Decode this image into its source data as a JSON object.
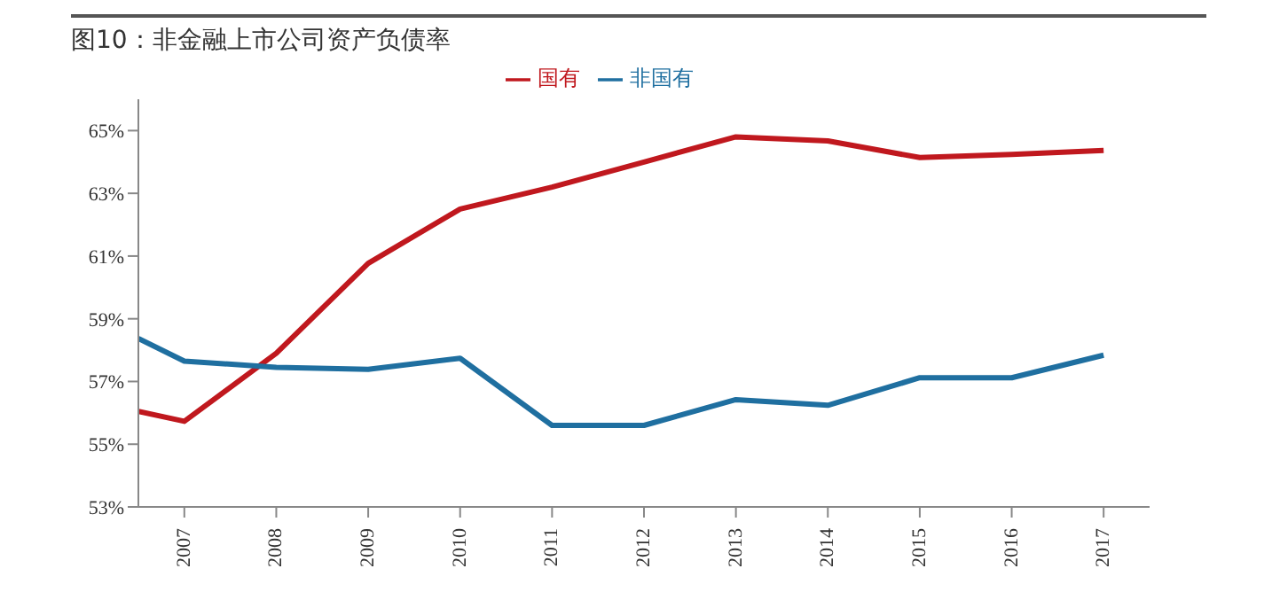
{
  "chart_data": {
    "type": "line",
    "title": "图10：非金融上市公司资产负债率",
    "x": [
      2006.5,
      2007,
      2008,
      2009,
      2010,
      2011,
      2012,
      2013,
      2014,
      2015,
      2016,
      2017
    ],
    "xlim": [
      2006.5,
      2017.5
    ],
    "xticks": [
      2007,
      2008,
      2009,
      2010,
      2011,
      2012,
      2013,
      2014,
      2015,
      2016,
      2017
    ],
    "ylim": [
      53,
      66
    ],
    "yticks": [
      {
        "value": 53,
        "label": "53%"
      },
      {
        "value": 55,
        "label": "55%"
      },
      {
        "value": 57,
        "label": "57%"
      },
      {
        "value": 59,
        "label": "59%"
      },
      {
        "value": 61,
        "label": "61%"
      },
      {
        "value": 63,
        "label": "63%"
      },
      {
        "value": 65,
        "label": "65%"
      }
    ],
    "series": [
      {
        "name": "国有",
        "color": "#c0181e",
        "values": [
          56.05,
          55.73,
          57.9,
          60.77,
          62.5,
          63.2,
          64.0,
          64.8,
          64.67,
          64.14,
          64.24,
          64.37
        ]
      },
      {
        "name": "非国有",
        "color": "#1f6fa0",
        "values": [
          58.37,
          57.65,
          57.45,
          57.39,
          57.74,
          55.6,
          55.6,
          56.42,
          56.24,
          57.12,
          57.12,
          57.84
        ]
      }
    ],
    "legend": "top",
    "grid": false,
    "marker": "none",
    "line_style": "solid"
  }
}
